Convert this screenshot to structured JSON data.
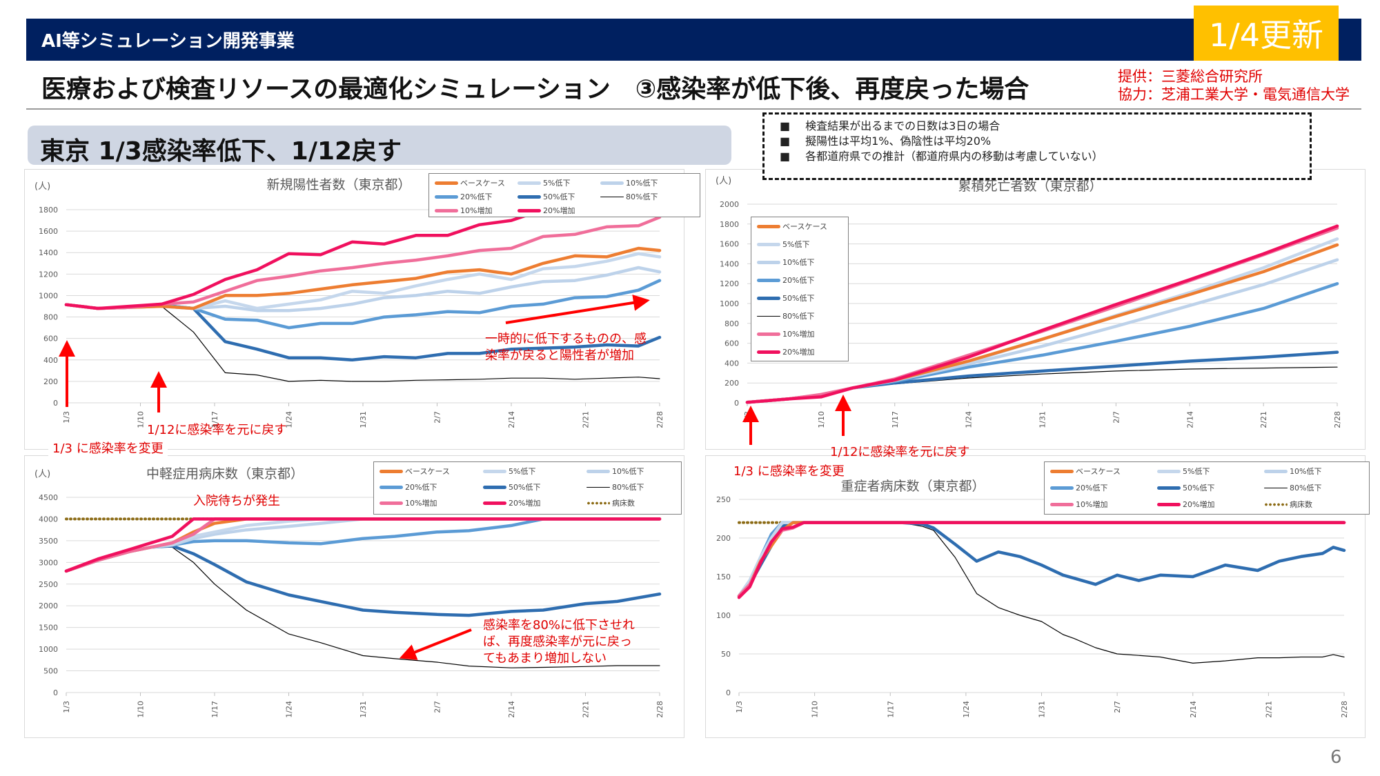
{
  "header": {
    "program": "AI等シミュレーション開発事業",
    "update_badge": "1/4更新",
    "title": "医療および検査リソースの最適化シミュレーション　③感染率が低下後、再度戻った場合",
    "credit_provider": "提供：三菱総合研究所",
    "credit_cooperation": "協力：芝浦工業大学・電気通信大学",
    "section_title": "東京 1/3感染率低下、1/12戻す"
  },
  "notes": [
    "検査結果が出るまでの日数は3日の場合",
    "擬陽性は平均1%、偽陰性は平均20%",
    "各都道府県での推計（都道府県内の移動は考慮していない）"
  ],
  "annotations": {
    "change_rate": "1/3 に感染率を変更",
    "restore_rate": "1/12に感染率を元に戻す",
    "temp_decrease": "一時的に低下するものの、感染率が戻ると陽性者が増加",
    "temp_decrease_l1": "一時的に低下するものの、感",
    "temp_decrease_l2": "染率が戻ると陽性者が増加",
    "waiting": "入院待ちが発生",
    "eighty_l1": "感染率を80%に低下させれ",
    "eighty_l2": "ば、再度感染率が元に戻っ",
    "eighty_l3": "てもあまり増加しない"
  },
  "page_number": "6",
  "series_styles": {
    "ベースケース": {
      "color": "#ED7D31",
      "width": "thick"
    },
    "5%低下": {
      "color": "#C5D7EC",
      "width": "thick"
    },
    "10%低下": {
      "color": "#BDD2EA",
      "width": "thick"
    },
    "20%低下": {
      "color": "#5B9BD5",
      "width": "thick"
    },
    "50%低下": {
      "color": "#2E6DB0",
      "width": "thick"
    },
    "80%低下": {
      "color": "#000000",
      "width": "thin"
    },
    "10%増加": {
      "color": "#F06E9A",
      "width": "thick"
    },
    "20%増加": {
      "color": "#F0105E",
      "width": "thick"
    },
    "病床数": {
      "color": "#8B6A14",
      "width": "dotted"
    }
  },
  "chart_data": [
    {
      "type": "line",
      "title": "新規陽性者数（東京都）",
      "ylabel": "(人)",
      "xlabel": "",
      "ylim": [
        0,
        1800
      ],
      "yticks": [
        0,
        200,
        400,
        600,
        800,
        1000,
        1200,
        1400,
        1600,
        1800
      ],
      "x_ticks": [
        "1/3",
        "1/10",
        "1/17",
        "1/24",
        "1/31",
        "2/7",
        "2/14",
        "2/21",
        "2/28"
      ],
      "x_days": [
        0,
        3,
        6,
        9,
        12,
        15,
        18,
        21,
        24,
        27,
        30,
        33,
        36,
        39,
        42,
        45,
        48,
        51,
        54,
        56
      ],
      "legend": "top-right",
      "series": [
        {
          "name": "ベースケース",
          "values": [
            915,
            880,
            890,
            900,
            880,
            1000,
            1000,
            1020,
            1060,
            1100,
            1130,
            1160,
            1220,
            1240,
            1200,
            1300,
            1370,
            1360,
            1440,
            1420
          ]
        },
        {
          "name": "5%低下",
          "values": [
            915,
            880,
            890,
            900,
            880,
            950,
            880,
            920,
            960,
            1040,
            1020,
            1090,
            1150,
            1200,
            1150,
            1250,
            1270,
            1320,
            1390,
            1360
          ]
        },
        {
          "name": "10%低下",
          "values": [
            915,
            880,
            890,
            900,
            880,
            900,
            860,
            860,
            880,
            920,
            980,
            1000,
            1040,
            1020,
            1080,
            1130,
            1140,
            1190,
            1260,
            1220
          ]
        },
        {
          "name": "20%低下",
          "values": [
            915,
            880,
            890,
            910,
            880,
            780,
            770,
            700,
            740,
            740,
            800,
            820,
            850,
            840,
            900,
            920,
            980,
            990,
            1050,
            1140
          ]
        },
        {
          "name": "50%低下",
          "values": [
            915,
            880,
            890,
            910,
            880,
            570,
            500,
            420,
            420,
            400,
            430,
            420,
            460,
            460,
            500,
            510,
            520,
            540,
            530,
            610
          ]
        },
        {
          "name": "80%低下",
          "values": [
            915,
            870,
            880,
            900,
            660,
            280,
            260,
            200,
            210,
            200,
            200,
            210,
            215,
            220,
            230,
            230,
            220,
            230,
            240,
            225
          ]
        },
        {
          "name": "10%増加",
          "values": [
            915,
            880,
            890,
            920,
            940,
            1040,
            1140,
            1180,
            1230,
            1260,
            1300,
            1330,
            1370,
            1420,
            1440,
            1550,
            1570,
            1640,
            1650,
            1730
          ]
        },
        {
          "name": "20%増加",
          "values": [
            915,
            880,
            900,
            920,
            1010,
            1150,
            1240,
            1390,
            1380,
            1500,
            1480,
            1560,
            1560,
            1660,
            1700,
            1800,
            1820,
            1840,
            1820,
            1840
          ]
        }
      ]
    },
    {
      "type": "line",
      "title": "累積死亡者数（東京都）",
      "ylabel": "(人)",
      "xlabel": "",
      "ylim": [
        0,
        2000
      ],
      "yticks": [
        0,
        200,
        400,
        600,
        800,
        1000,
        1200,
        1400,
        1600,
        1800,
        2000
      ],
      "x_ticks": [
        "1/3",
        "1/10",
        "1/17",
        "1/24",
        "1/31",
        "2/7",
        "2/14",
        "2/21",
        "2/28"
      ],
      "x_days": [
        0,
        4,
        7,
        10,
        14,
        21,
        28,
        35,
        42,
        49,
        56
      ],
      "legend": "top-left",
      "series": [
        {
          "name": "ベースケース",
          "values": [
            5,
            40,
            80,
            150,
            230,
            420,
            640,
            870,
            1090,
            1320,
            1590
          ]
        },
        {
          "name": "5%低下",
          "values": [
            5,
            40,
            80,
            150,
            230,
            410,
            640,
            880,
            1110,
            1360,
            1650
          ]
        },
        {
          "name": "10%低下",
          "values": [
            5,
            40,
            80,
            150,
            225,
            390,
            570,
            770,
            980,
            1190,
            1440
          ]
        },
        {
          "name": "20%低下",
          "values": [
            5,
            40,
            80,
            150,
            215,
            360,
            480,
            620,
            770,
            950,
            1200
          ]
        },
        {
          "name": "50%低下",
          "values": [
            5,
            40,
            80,
            150,
            200,
            270,
            320,
            370,
            420,
            460,
            510
          ]
        },
        {
          "name": "80%低下",
          "values": [
            5,
            40,
            80,
            145,
            190,
            250,
            290,
            320,
            340,
            350,
            360
          ]
        },
        {
          "name": "10%増加",
          "values": [
            5,
            40,
            85,
            150,
            240,
            480,
            720,
            970,
            1230,
            1490,
            1760
          ]
        },
        {
          "name": "20%増加",
          "values": [
            5,
            40,
            60,
            150,
            230,
            460,
            730,
            990,
            1240,
            1500,
            1780
          ]
        }
      ]
    },
    {
      "type": "line",
      "title": "中軽症用病床数（東京都）",
      "ylabel": "(人)",
      "xlabel": "",
      "ylim": [
        0,
        4500
      ],
      "yticks": [
        0,
        500,
        1000,
        1500,
        2000,
        2500,
        3000,
        3500,
        4000,
        4500
      ],
      "x_ticks": [
        "1/3",
        "1/10",
        "1/17",
        "1/24",
        "1/31",
        "2/7",
        "2/14",
        "2/21",
        "2/28"
      ],
      "x_days": [
        0,
        3,
        6,
        8,
        10,
        12,
        14,
        17,
        21,
        24,
        28,
        31,
        35,
        38,
        42,
        45,
        49,
        52,
        56
      ],
      "legend": "top-right",
      "series": [
        {
          "name": "ベースケース",
          "values": [
            2800,
            3050,
            3250,
            3350,
            3450,
            3700,
            3900,
            4000,
            4000,
            4000,
            4000,
            4000,
            4000,
            4000,
            4000,
            4000,
            4000,
            4000,
            4000
          ]
        },
        {
          "name": "5%低下",
          "values": [
            2800,
            3050,
            3250,
            3350,
            3420,
            3600,
            3700,
            3850,
            3950,
            4000,
            4000,
            4000,
            4000,
            4000,
            4000,
            4000,
            4000,
            4000,
            4000
          ]
        },
        {
          "name": "10%低下",
          "values": [
            2800,
            3050,
            3250,
            3350,
            3400,
            3550,
            3650,
            3750,
            3830,
            3900,
            4000,
            4000,
            4000,
            4000,
            4000,
            4000,
            4000,
            4000,
            4000
          ]
        },
        {
          "name": "20%低下",
          "values": [
            2800,
            3050,
            3250,
            3350,
            3400,
            3480,
            3500,
            3500,
            3450,
            3430,
            3550,
            3600,
            3700,
            3730,
            3850,
            4000,
            4000,
            4000,
            4000
          ]
        },
        {
          "name": "50%低下",
          "values": [
            2800,
            3050,
            3250,
            3350,
            3380,
            3200,
            2950,
            2550,
            2250,
            2100,
            1900,
            1850,
            1800,
            1780,
            1870,
            1900,
            2050,
            2100,
            2270
          ]
        },
        {
          "name": "80%低下",
          "values": [
            2800,
            3050,
            3250,
            3350,
            3350,
            3000,
            2500,
            1900,
            1350,
            1150,
            850,
            780,
            700,
            610,
            570,
            580,
            600,
            620,
            620
          ]
        },
        {
          "name": "10%増加",
          "values": [
            2800,
            3050,
            3250,
            3350,
            3450,
            3650,
            4000,
            4000,
            4000,
            4000,
            4000,
            4000,
            4000,
            4000,
            4000,
            4000,
            4000,
            4000,
            4000
          ]
        },
        {
          "name": "20%増加",
          "values": [
            2800,
            3080,
            3300,
            3450,
            3600,
            4000,
            4000,
            4000,
            4000,
            4000,
            4000,
            4000,
            4000,
            4000,
            4000,
            4000,
            4000,
            4000,
            4000
          ]
        },
        {
          "name": "病床数",
          "values": [
            4000,
            4000,
            4000,
            4000,
            4000,
            4000,
            4000,
            4000,
            4000,
            4000,
            4000,
            4000,
            4000,
            4000,
            4000,
            4000,
            4000,
            4000,
            4000
          ]
        }
      ]
    },
    {
      "type": "line",
      "title": "重症者病床数（東京都）",
      "ylabel": "",
      "xlabel": "",
      "ylim": [
        0,
        250
      ],
      "yticks": [
        0,
        50,
        100,
        150,
        200,
        250
      ],
      "x_ticks": [
        "1/3",
        "1/10",
        "1/17",
        "1/24",
        "1/31",
        "2/7",
        "2/14",
        "2/21",
        "2/28"
      ],
      "x_days": [
        0,
        1,
        2,
        3,
        4,
        5,
        6,
        7,
        10,
        15,
        17,
        18,
        20,
        22,
        24,
        26,
        28,
        30,
        31,
        33,
        35,
        37,
        39,
        42,
        45,
        48,
        50,
        52,
        54,
        55,
        56
      ],
      "legend": "top-right",
      "series": [
        {
          "name": "ベースケース",
          "values": [
            125,
            140,
            170,
            190,
            210,
            220,
            220,
            220,
            220,
            220,
            220,
            220,
            220,
            220,
            220,
            220,
            220,
            220,
            220,
            220,
            220,
            220,
            220,
            220,
            220,
            220,
            220,
            220,
            220,
            220,
            220
          ]
        },
        {
          "name": "5%低下",
          "values": [
            125,
            145,
            175,
            200,
            220,
            220,
            220,
            220,
            220,
            220,
            220,
            220,
            220,
            220,
            220,
            220,
            220,
            220,
            220,
            220,
            220,
            220,
            220,
            220,
            220,
            220,
            220,
            220,
            220,
            220,
            220
          ]
        },
        {
          "name": "10%低下",
          "values": [
            125,
            145,
            175,
            200,
            220,
            220,
            220,
            220,
            220,
            220,
            220,
            220,
            220,
            220,
            220,
            220,
            220,
            220,
            220,
            220,
            220,
            220,
            220,
            220,
            220,
            220,
            220,
            220,
            220,
            220,
            220
          ]
        },
        {
          "name": "20%低下",
          "values": [
            125,
            145,
            175,
            205,
            220,
            220,
            220,
            220,
            220,
            220,
            220,
            220,
            220,
            220,
            220,
            220,
            220,
            220,
            220,
            220,
            220,
            220,
            220,
            220,
            220,
            220,
            220,
            220,
            220,
            220,
            220
          ]
        },
        {
          "name": "50%低下",
          "values": [
            125,
            140,
            165,
            190,
            215,
            220,
            220,
            220,
            220,
            220,
            218,
            213,
            192,
            170,
            182,
            176,
            165,
            152,
            148,
            140,
            152,
            145,
            152,
            150,
            165,
            158,
            170,
            176,
            180,
            188,
            184
          ]
        },
        {
          "name": "80%低下",
          "values": [
            125,
            140,
            168,
            195,
            215,
            220,
            220,
            220,
            220,
            220,
            215,
            210,
            175,
            128,
            110,
            100,
            92,
            75,
            70,
            58,
            50,
            48,
            46,
            38,
            41,
            45,
            45,
            46,
            46,
            49,
            46
          ]
        },
        {
          "name": "10%増加",
          "values": [
            125,
            140,
            168,
            195,
            210,
            213,
            220,
            220,
            220,
            220,
            220,
            220,
            220,
            220,
            220,
            220,
            220,
            220,
            220,
            220,
            220,
            220,
            220,
            220,
            220,
            220,
            220,
            220,
            220,
            220,
            220
          ]
        },
        {
          "name": "20%増加",
          "values": [
            123,
            137,
            168,
            195,
            212,
            214,
            220,
            220,
            220,
            220,
            220,
            220,
            220,
            220,
            220,
            220,
            220,
            220,
            220,
            220,
            220,
            220,
            220,
            220,
            220,
            220,
            220,
            220,
            220,
            220,
            220
          ]
        },
        {
          "name": "病床数",
          "values": [
            220,
            220,
            220,
            220,
            220,
            220,
            220,
            220,
            220,
            220,
            220,
            220,
            220,
            220,
            220,
            220,
            220,
            220,
            220,
            220,
            220,
            220,
            220,
            220,
            220,
            220,
            220,
            220,
            220,
            220,
            220
          ]
        }
      ]
    }
  ]
}
